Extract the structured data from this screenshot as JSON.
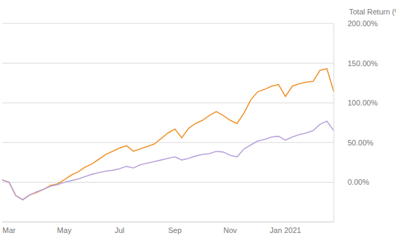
{
  "chart_data": {
    "type": "line",
    "ylabel": "Total Return (%)",
    "categories": [
      null,
      "Mar",
      null,
      null,
      null,
      null,
      null,
      null,
      null,
      "May",
      null,
      null,
      null,
      null,
      null,
      null,
      null,
      "Jul",
      null,
      null,
      null,
      null,
      null,
      null,
      null,
      "Sep",
      null,
      null,
      null,
      null,
      null,
      null,
      null,
      "Nov",
      null,
      null,
      null,
      null,
      null,
      null,
      null,
      "Jan 2021",
      null,
      null,
      null,
      null,
      null,
      null,
      null
    ],
    "series": [
      {
        "color": "#F0922B",
        "values": [
          3,
          0,
          -17,
          -22,
          -16,
          -13,
          -9,
          -4,
          -2,
          3,
          9,
          13,
          19,
          23,
          29,
          35,
          39,
          43,
          46,
          39,
          42,
          45,
          48,
          55,
          62,
          67,
          56,
          68,
          74,
          78,
          84,
          89,
          84,
          78,
          74,
          87,
          104,
          114,
          117,
          121,
          123,
          108,
          121,
          124,
          126,
          127,
          141,
          143,
          114
        ]
      },
      {
        "color": "#B9A3DB",
        "values": [
          3,
          0,
          -17,
          -22,
          -16,
          -12,
          -9,
          -5,
          -3,
          0,
          2,
          4,
          7,
          10,
          12,
          14,
          15,
          17,
          20,
          18,
          22,
          24,
          26,
          28,
          30,
          32,
          28,
          30,
          33,
          35,
          36,
          39,
          38,
          34,
          32,
          42,
          47,
          52,
          54,
          57,
          58,
          53,
          57,
          60,
          62,
          65,
          73,
          77,
          65
        ]
      }
    ],
    "ylim": [
      -50,
      200
    ],
    "yticks": [
      {
        "value": 0,
        "label": "0.00%"
      },
      {
        "value": 50,
        "label": "50.00%"
      },
      {
        "value": 100,
        "label": "100.00%"
      },
      {
        "value": 150,
        "label": "150.00%"
      },
      {
        "value": 200,
        "label": "200.00%"
      }
    ],
    "grid": true
  }
}
